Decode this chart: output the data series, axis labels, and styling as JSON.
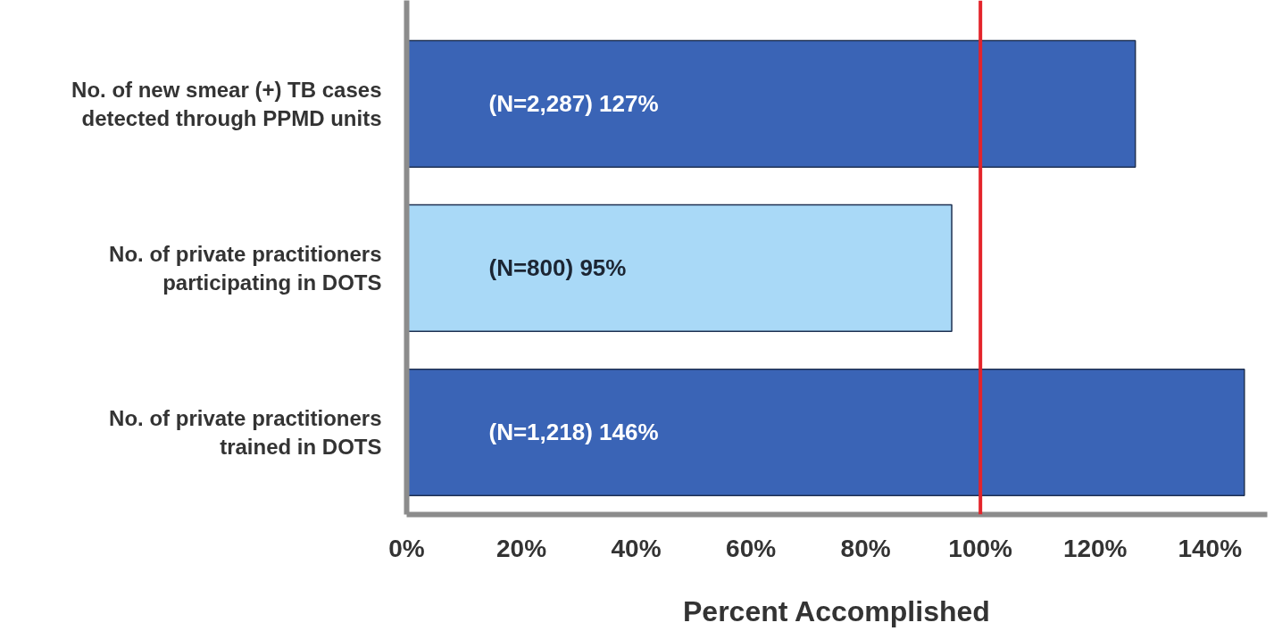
{
  "chart_data": {
    "type": "bar",
    "orientation": "horizontal",
    "categories": [
      "No. of new smear (+) TB cases detected through PPMD units",
      "No. of private practitioners participating in DOTS",
      "No. of private practitioners trained in DOTS"
    ],
    "values": [
      127,
      95,
      146
    ],
    "colors": [
      "#3a64b6",
      "#a9d9f7",
      "#3a64b6"
    ],
    "value_labels": [
      "(N=2,287) 127%",
      "(N=800) 95%",
      "(N=1,218) 146%"
    ],
    "xlabel": "Percent Accomplished",
    "xlim": [
      0,
      150
    ],
    "xticks": [
      {
        "value": 0,
        "label": "0%"
      },
      {
        "value": 20,
        "label": "20%"
      },
      {
        "value": 40,
        "label": "40%"
      },
      {
        "value": 60,
        "label": "60%"
      },
      {
        "value": 80,
        "label": "80%"
      },
      {
        "value": 100,
        "label": "100%"
      },
      {
        "value": 120,
        "label": "120%"
      },
      {
        "value": 140,
        "label": "140%"
      }
    ],
    "ref_lines": [
      {
        "axis": "x",
        "value": 100,
        "color": "#e3242b"
      }
    ],
    "grid": false
  }
}
